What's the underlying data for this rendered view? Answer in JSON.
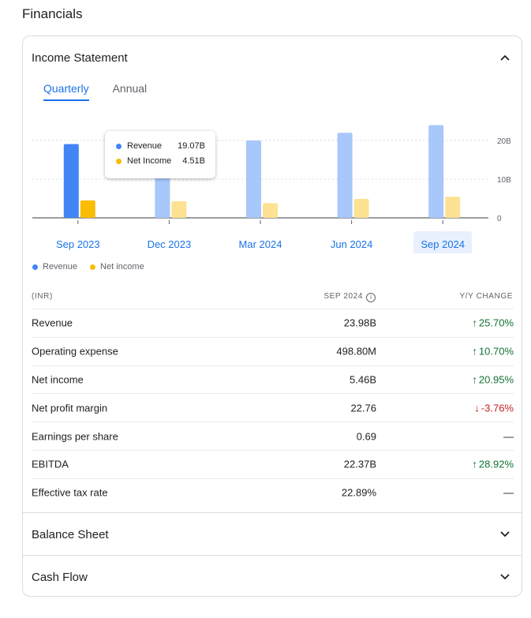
{
  "page_title": "Financials",
  "income_statement": {
    "title": "Income Statement",
    "tabs": [
      {
        "label": "Quarterly",
        "active": true
      },
      {
        "label": "Annual",
        "active": false
      }
    ],
    "legend": [
      {
        "label": "Revenue",
        "color": "#4285f4"
      },
      {
        "label": "Net income",
        "color": "#fbbc04"
      }
    ],
    "tooltip": {
      "rows": [
        {
          "label": "Revenue",
          "value": "19.07B",
          "color": "#4285f4"
        },
        {
          "label": "Net Income",
          "value": "4.51B",
          "color": "#fbbc04"
        }
      ]
    },
    "table": {
      "currency": "(INR)",
      "period_label": "SEP 2024",
      "change_label": "Y/Y CHANGE",
      "rows": [
        {
          "name": "Revenue",
          "value": "23.98B",
          "change": "25.70%",
          "direction": "up"
        },
        {
          "name": "Operating expense",
          "value": "498.80M",
          "change": "10.70%",
          "direction": "up"
        },
        {
          "name": "Net income",
          "value": "5.46B",
          "change": "20.95%",
          "direction": "up"
        },
        {
          "name": "Net profit margin",
          "value": "22.76",
          "change": "-3.76%",
          "direction": "down"
        },
        {
          "name": "Earnings per share",
          "value": "0.69",
          "change": "—",
          "direction": "none"
        },
        {
          "name": "EBITDA",
          "value": "22.37B",
          "change": "28.92%",
          "direction": "up"
        },
        {
          "name": "Effective tax rate",
          "value": "22.89%",
          "change": "—",
          "direction": "none"
        }
      ]
    }
  },
  "balance_sheet": {
    "title": "Balance Sheet"
  },
  "cash_flow": {
    "title": "Cash Flow"
  },
  "chart_data": {
    "type": "bar",
    "categories": [
      "Sep 2023",
      "Dec 2023",
      "Mar 2024",
      "Jun 2024",
      "Sep 2024"
    ],
    "series": [
      {
        "name": "Revenue",
        "values": [
          19.07,
          18.5,
          20.0,
          22.0,
          23.98
        ],
        "color": "#4285f4"
      },
      {
        "name": "Net income",
        "values": [
          4.51,
          4.3,
          3.8,
          4.9,
          5.46
        ],
        "color": "#fbbc04"
      }
    ],
    "y_ticks": [
      "0",
      "10B",
      "20B"
    ],
    "ylim": [
      0,
      25
    ],
    "highlighted": 0,
    "selected": 4
  }
}
